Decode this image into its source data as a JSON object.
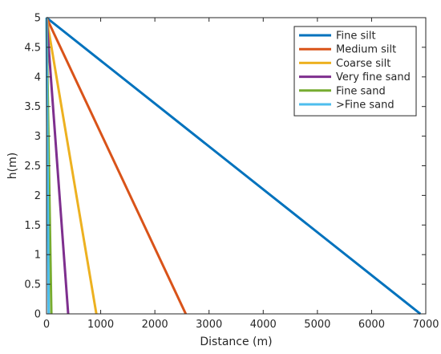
{
  "chart_data": {
    "type": "line",
    "xlabel": "Distance (m)",
    "ylabel": "h(m)",
    "xlim": [
      0,
      7000
    ],
    "ylim": [
      0,
      5
    ],
    "xticks": [
      0,
      1000,
      2000,
      3000,
      4000,
      5000,
      6000,
      7000
    ],
    "yticks": [
      0,
      0.5,
      1,
      1.5,
      2,
      2.5,
      3,
      3.5,
      4,
      4.5,
      5
    ],
    "xtick_labels": [
      "0",
      "1000",
      "2000",
      "3000",
      "4000",
      "5000",
      "6000",
      "7000"
    ],
    "ytick_labels": [
      "0",
      "0.5",
      "1",
      "1.5",
      "2",
      "2.5",
      "3",
      "3.5",
      "4",
      "4.5",
      "5"
    ],
    "grid": false,
    "legend_position": "top-right",
    "series": [
      {
        "name": "Fine silt",
        "color": "#0072BD",
        "x": [
          0,
          6900
        ],
        "y": [
          5,
          0
        ]
      },
      {
        "name": "Medium silt",
        "color": "#D95319",
        "x": [
          0,
          2570
        ],
        "y": [
          5,
          0
        ]
      },
      {
        "name": "Coarse silt",
        "color": "#EDB120",
        "x": [
          0,
          920
        ],
        "y": [
          5,
          0
        ]
      },
      {
        "name": "Very fine sand",
        "color": "#7E2F8E",
        "x": [
          0,
          400
        ],
        "y": [
          5,
          0
        ]
      },
      {
        "name": "Fine sand",
        "color": "#77AC30",
        "x": [
          0,
          90
        ],
        "y": [
          5,
          0
        ]
      },
      {
        "name": ">Fine sand",
        "color": "#4DBEEE",
        "x": [
          0,
          40
        ],
        "y": [
          5,
          0
        ]
      }
    ]
  }
}
